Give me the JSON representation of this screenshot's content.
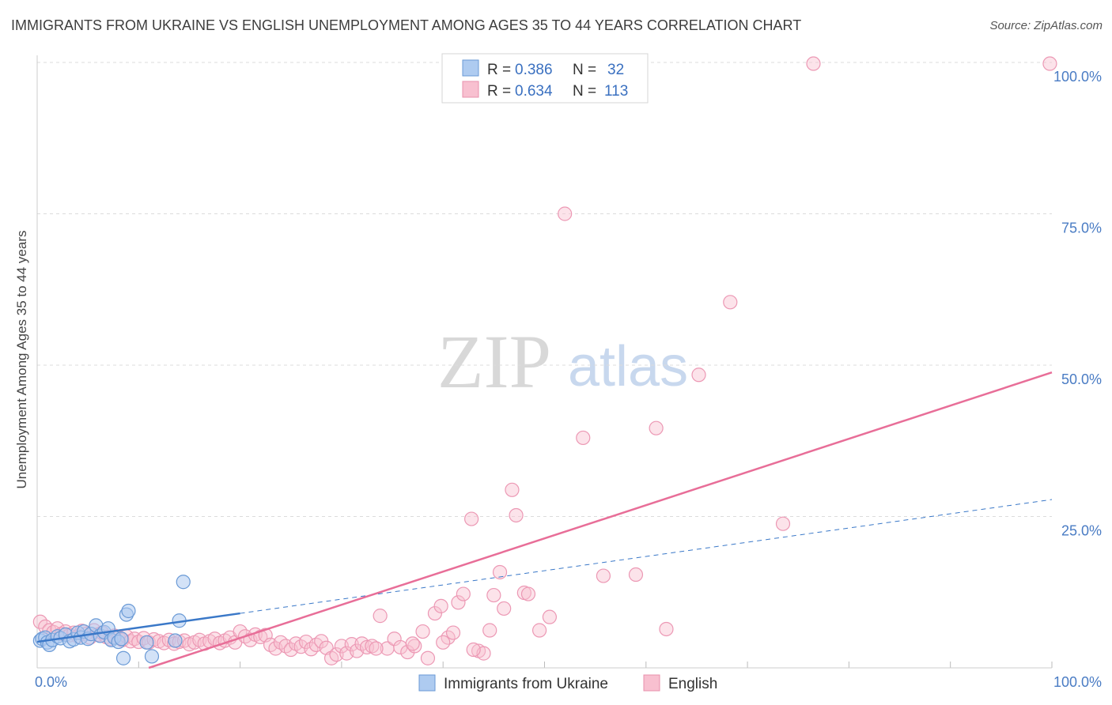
{
  "title": "IMMIGRANTS FROM UKRAINE VS ENGLISH UNEMPLOYMENT AMONG AGES 35 TO 44 YEARS CORRELATION CHART",
  "source": "Source: ZipAtlas.com",
  "watermark": {
    "zip": "ZIP",
    "atlas": "atlas"
  },
  "legend": {
    "r_label": "R =",
    "n_label": "N =",
    "entries": [
      {
        "name": "Immigrants from Ukraine",
        "r": "0.386",
        "n": "32",
        "fill": "#aecbf0",
        "stroke": "#6a9ad6"
      },
      {
        "name": "English",
        "r": "0.634",
        "n": "113",
        "fill": "#f8c0d0",
        "stroke": "#e890ac"
      }
    ]
  },
  "chart_data": {
    "type": "scatter",
    "title": "IMMIGRANTS FROM UKRAINE VS ENGLISH UNEMPLOYMENT AMONG AGES 35 TO 44 YEARS CORRELATION CHART",
    "xlabel": "",
    "ylabel": "Unemployment Among Ages 35 to 44 years",
    "xlim": [
      0,
      100
    ],
    "ylim": [
      0,
      100
    ],
    "x_tick_labels": [
      "0.0%",
      "100.0%"
    ],
    "y_ticks": [
      25,
      50,
      75,
      100
    ],
    "y_tick_labels": [
      "25.0%",
      "50.0%",
      "75.0%",
      "100.0%"
    ],
    "colors": {
      "ukraine": "#3a78c8",
      "english": "#e86e98"
    },
    "series": [
      {
        "name": "Immigrants from Ukraine",
        "points": [
          [
            0.3,
            4.5
          ],
          [
            0.5,
            4.8
          ],
          [
            0.8,
            5.0
          ],
          [
            1.0,
            4.2
          ],
          [
            1.2,
            3.8
          ],
          [
            1.5,
            4.6
          ],
          [
            2.0,
            5.2
          ],
          [
            2.3,
            4.9
          ],
          [
            2.8,
            5.5
          ],
          [
            3.2,
            4.4
          ],
          [
            3.6,
            4.7
          ],
          [
            4.0,
            5.8
          ],
          [
            4.3,
            5.0
          ],
          [
            4.6,
            6.0
          ],
          [
            5.0,
            4.8
          ],
          [
            5.3,
            5.6
          ],
          [
            5.8,
            7.0
          ],
          [
            6.2,
            5.3
          ],
          [
            6.6,
            5.9
          ],
          [
            7.0,
            6.5
          ],
          [
            7.3,
            4.6
          ],
          [
            7.6,
            5.0
          ],
          [
            8.0,
            4.3
          ],
          [
            8.3,
            4.8
          ],
          [
            8.8,
            8.8
          ],
          [
            9.0,
            9.4
          ],
          [
            8.5,
            1.6
          ],
          [
            11.3,
            1.9
          ],
          [
            13.6,
            4.5
          ],
          [
            14.0,
            7.8
          ],
          [
            14.4,
            14.2
          ],
          [
            10.8,
            4.2
          ]
        ],
        "trend": {
          "x0": 0,
          "y0": 4.3,
          "x1": 20,
          "y1": 9.0,
          "dash_x1": 100,
          "dash_y1": 27.8
        }
      },
      {
        "name": "English",
        "points": [
          [
            0.3,
            7.6
          ],
          [
            0.8,
            6.8
          ],
          [
            1.2,
            6.2
          ],
          [
            1.6,
            5.9
          ],
          [
            2.0,
            6.5
          ],
          [
            2.4,
            5.6
          ],
          [
            2.8,
            6.0
          ],
          [
            3.2,
            5.4
          ],
          [
            3.6,
            5.8
          ],
          [
            4.0,
            5.2
          ],
          [
            4.4,
            6.1
          ],
          [
            4.8,
            5.6
          ],
          [
            5.2,
            5.0
          ],
          [
            5.6,
            6.2
          ],
          [
            6.0,
            5.5
          ],
          [
            6.4,
            5.8
          ],
          [
            6.8,
            5.1
          ],
          [
            7.2,
            4.8
          ],
          [
            7.6,
            5.3
          ],
          [
            8.0,
            5.0
          ],
          [
            8.4,
            4.6
          ],
          [
            8.8,
            5.2
          ],
          [
            9.2,
            4.4
          ],
          [
            9.6,
            4.8
          ],
          [
            10.0,
            4.3
          ],
          [
            10.5,
            4.9
          ],
          [
            11.0,
            4.2
          ],
          [
            11.5,
            4.7
          ],
          [
            12.0,
            4.4
          ],
          [
            12.5,
            4.1
          ],
          [
            13.0,
            4.6
          ],
          [
            13.5,
            4.0
          ],
          [
            14.0,
            4.3
          ],
          [
            14.5,
            4.5
          ],
          [
            15.0,
            3.9
          ],
          [
            15.5,
            4.2
          ],
          [
            16.0,
            4.6
          ],
          [
            16.5,
            4.0
          ],
          [
            17.0,
            4.4
          ],
          [
            17.5,
            4.8
          ],
          [
            18.0,
            4.1
          ],
          [
            18.5,
            4.5
          ],
          [
            19.0,
            5.0
          ],
          [
            19.5,
            4.2
          ],
          [
            20.0,
            6.0
          ],
          [
            20.5,
            5.2
          ],
          [
            21.0,
            4.6
          ],
          [
            21.5,
            5.5
          ],
          [
            22.0,
            5.1
          ],
          [
            22.5,
            5.4
          ],
          [
            23.0,
            3.8
          ],
          [
            23.5,
            3.2
          ],
          [
            24.0,
            4.2
          ],
          [
            24.5,
            3.6
          ],
          [
            25.0,
            3.0
          ],
          [
            25.5,
            4.0
          ],
          [
            26.0,
            3.5
          ],
          [
            26.5,
            4.3
          ],
          [
            27.0,
            3.1
          ],
          [
            27.5,
            3.8
          ],
          [
            28.0,
            4.4
          ],
          [
            28.5,
            3.3
          ],
          [
            29.0,
            1.6
          ],
          [
            29.5,
            2.2
          ],
          [
            30.0,
            3.6
          ],
          [
            30.5,
            2.4
          ],
          [
            31.0,
            3.9
          ],
          [
            31.5,
            2.8
          ],
          [
            32.0,
            4.0
          ],
          [
            32.5,
            3.4
          ],
          [
            33.0,
            3.6
          ],
          [
            33.8,
            8.6
          ],
          [
            34.5,
            3.2
          ],
          [
            35.2,
            4.8
          ],
          [
            35.8,
            3.4
          ],
          [
            36.5,
            2.6
          ],
          [
            37.2,
            3.6
          ],
          [
            38.0,
            6.0
          ],
          [
            38.5,
            1.6
          ],
          [
            39.2,
            9.0
          ],
          [
            39.8,
            10.2
          ],
          [
            40.5,
            5.0
          ],
          [
            41.0,
            5.8
          ],
          [
            41.5,
            10.8
          ],
          [
            42.0,
            12.2
          ],
          [
            42.8,
            24.6
          ],
          [
            43.5,
            2.8
          ],
          [
            44.0,
            2.4
          ],
          [
            44.6,
            6.2
          ],
          [
            45.0,
            12.0
          ],
          [
            45.6,
            15.8
          ],
          [
            46.0,
            9.8
          ],
          [
            46.8,
            29.4
          ],
          [
            47.2,
            25.2
          ],
          [
            48.0,
            12.4
          ],
          [
            48.4,
            12.2
          ],
          [
            49.5,
            6.2
          ],
          [
            50.5,
            8.4
          ],
          [
            52.0,
            75.0
          ],
          [
            53.8,
            38.0
          ],
          [
            55.8,
            15.2
          ],
          [
            59.0,
            15.4
          ],
          [
            61.0,
            39.6
          ],
          [
            62.0,
            6.4
          ],
          [
            65.2,
            48.4
          ],
          [
            68.3,
            60.4
          ],
          [
            73.5,
            23.8
          ],
          [
            76.5,
            99.8
          ],
          [
            99.8,
            99.8
          ],
          [
            33.4,
            3.2
          ],
          [
            37.0,
            4.0
          ],
          [
            40.0,
            4.2
          ],
          [
            43.0,
            3.0
          ]
        ],
        "trend": {
          "x0": 11,
          "y0": 0,
          "x1": 100,
          "y1": 48.8
        }
      }
    ]
  }
}
